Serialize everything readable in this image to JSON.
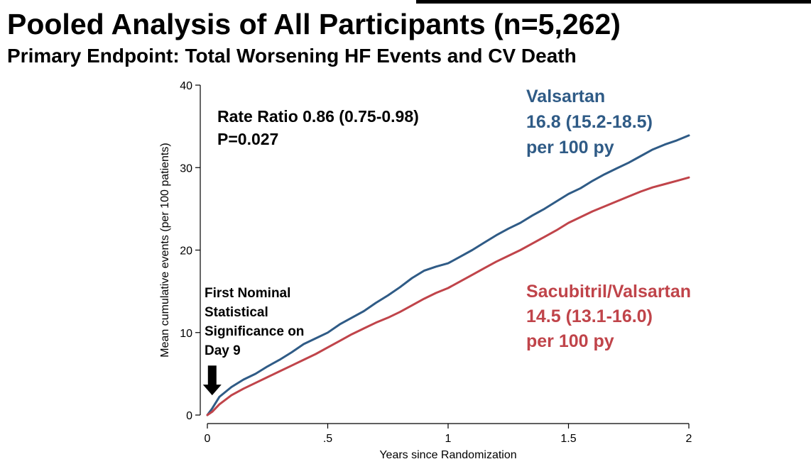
{
  "header": {
    "title": "Pooled Analysis of All Participants (n=5,262)",
    "subtitle": "Primary Endpoint: Total Worsening HF Events and CV Death"
  },
  "annotations": {
    "rate_ratio_line1": "Rate Ratio 0.86 (0.75-0.98)",
    "rate_ratio_line2": "P=0.027",
    "valsartan_line1": "Valsartan",
    "valsartan_line2": "16.8 (15.2-18.5)",
    "valsartan_line3": "per 100 py",
    "sacubitril_line1": "Sacubitril/Valsartan",
    "sacubitril_line2": "14.5 (13.1-16.0)",
    "sacubitril_line3": "per 100 py",
    "nominal_line1": "First Nominal",
    "nominal_line2": "Statistical",
    "nominal_line3": "Significance on",
    "nominal_line4": "Day 9"
  },
  "chart_data": {
    "type": "line",
    "title": "",
    "xlabel": "Years since Randomization",
    "ylabel": "Mean cumulative events (per 100 patients)",
    "xlim": [
      0,
      2
    ],
    "ylim": [
      0,
      40
    ],
    "x_ticks": [
      {
        "value": 0,
        "label": "0"
      },
      {
        "value": 0.5,
        "label": ".5"
      },
      {
        "value": 1,
        "label": "1"
      },
      {
        "value": 1.5,
        "label": "1.5"
      },
      {
        "value": 2,
        "label": "2"
      }
    ],
    "y_ticks": [
      {
        "value": 0,
        "label": "0"
      },
      {
        "value": 10,
        "label": "10"
      },
      {
        "value": 20,
        "label": "20"
      },
      {
        "value": 30,
        "label": "30"
      },
      {
        "value": 40,
        "label": "40"
      }
    ],
    "grid": false,
    "series": [
      {
        "name": "Valsartan",
        "color": "#2f5b86",
        "x": [
          0,
          0.02,
          0.05,
          0.1,
          0.15,
          0.2,
          0.25,
          0.3,
          0.35,
          0.4,
          0.45,
          0.5,
          0.55,
          0.6,
          0.65,
          0.7,
          0.75,
          0.8,
          0.85,
          0.9,
          0.95,
          1.0,
          1.05,
          1.1,
          1.15,
          1.2,
          1.25,
          1.3,
          1.35,
          1.4,
          1.45,
          1.5,
          1.55,
          1.6,
          1.65,
          1.7,
          1.75,
          1.8,
          1.85,
          1.9,
          1.95,
          2.0
        ],
        "y": [
          0,
          0.8,
          2.2,
          3.4,
          4.3,
          5.0,
          5.9,
          6.7,
          7.6,
          8.6,
          9.3,
          10.0,
          11.0,
          11.8,
          12.6,
          13.6,
          14.5,
          15.5,
          16.6,
          17.5,
          18.0,
          18.4,
          19.2,
          20.0,
          20.9,
          21.8,
          22.6,
          23.3,
          24.2,
          25.0,
          25.9,
          26.8,
          27.5,
          28.4,
          29.2,
          29.9,
          30.6,
          31.4,
          32.2,
          32.8,
          33.3,
          33.9
        ]
      },
      {
        "name": "Sacubitril/Valsartan",
        "color": "#c0444a",
        "x": [
          0,
          0.02,
          0.05,
          0.1,
          0.15,
          0.2,
          0.25,
          0.3,
          0.35,
          0.4,
          0.45,
          0.5,
          0.55,
          0.6,
          0.65,
          0.7,
          0.75,
          0.8,
          0.85,
          0.9,
          0.95,
          1.0,
          1.05,
          1.1,
          1.15,
          1.2,
          1.25,
          1.3,
          1.35,
          1.4,
          1.45,
          1.5,
          1.55,
          1.6,
          1.65,
          1.7,
          1.75,
          1.8,
          1.85,
          1.9,
          1.95,
          2.0
        ],
        "y": [
          0,
          0.4,
          1.3,
          2.4,
          3.2,
          3.9,
          4.6,
          5.3,
          6.0,
          6.7,
          7.4,
          8.2,
          9.0,
          9.8,
          10.5,
          11.2,
          11.8,
          12.5,
          13.3,
          14.1,
          14.8,
          15.4,
          16.2,
          17.0,
          17.8,
          18.6,
          19.3,
          20.0,
          20.8,
          21.6,
          22.4,
          23.3,
          24.0,
          24.7,
          25.3,
          25.9,
          26.5,
          27.1,
          27.6,
          28.0,
          28.4,
          28.8
        ]
      }
    ],
    "arrow": {
      "x": 0.02,
      "y_from": 6.0,
      "y_to": 2.4
    }
  }
}
